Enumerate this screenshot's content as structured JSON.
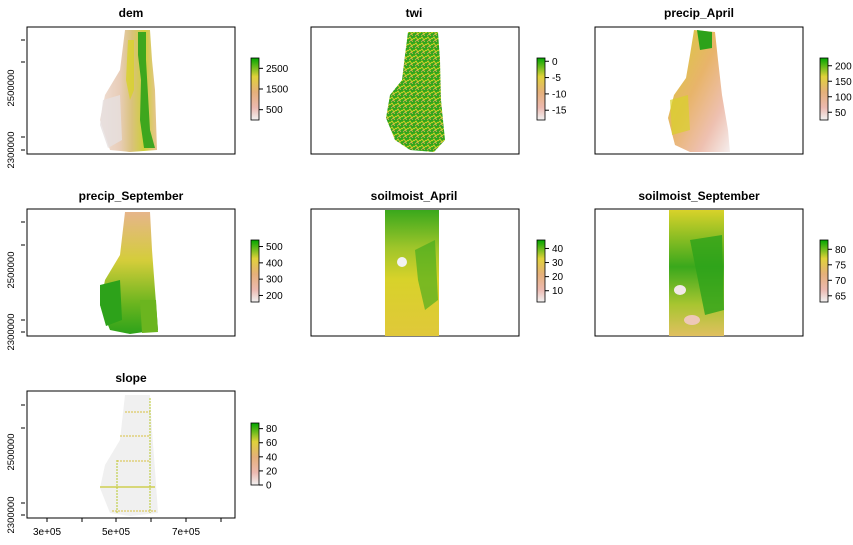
{
  "panels": [
    {
      "id": "dem",
      "title": "dem",
      "legend": {
        "ticks": [
          "2500",
          "1500",
          "500"
        ],
        "values": [
          2500,
          1500,
          500
        ],
        "range": [
          0,
          3000
        ],
        "palette": "terrain"
      }
    },
    {
      "id": "twi",
      "title": "twi",
      "legend": {
        "ticks": [
          "0",
          "-5",
          "-10",
          "-15"
        ],
        "values": [
          0,
          -5,
          -10,
          -15
        ],
        "range": [
          -18,
          1
        ],
        "palette": "terrain"
      }
    },
    {
      "id": "precip_April",
      "title": "precip_April",
      "legend": {
        "ticks": [
          "200",
          "150",
          "100",
          "50"
        ],
        "values": [
          200,
          150,
          100,
          50
        ],
        "range": [
          25,
          225
        ],
        "palette": "terrain"
      }
    },
    {
      "id": "precip_September",
      "title": "precip_September",
      "legend": {
        "ticks": [
          "500",
          "400",
          "300",
          "200"
        ],
        "values": [
          500,
          400,
          300,
          200
        ],
        "range": [
          160,
          540
        ],
        "palette": "terrain"
      }
    },
    {
      "id": "soilmoist_April",
      "title": "soilmoist_April",
      "legend": {
        "ticks": [
          "40",
          "30",
          "20",
          "10"
        ],
        "values": [
          40,
          30,
          20,
          10
        ],
        "range": [
          2,
          46
        ],
        "palette": "terrain"
      }
    },
    {
      "id": "soilmoist_September",
      "title": "soilmoist_September",
      "legend": {
        "ticks": [
          "80",
          "75",
          "70",
          "65"
        ],
        "values": [
          80,
          75,
          70,
          65
        ],
        "range": [
          63,
          83
        ],
        "palette": "terrain"
      }
    },
    {
      "id": "slope",
      "title": "slope",
      "legend": {
        "ticks": [
          "80",
          "60",
          "40",
          "20",
          "0"
        ],
        "values": [
          80,
          60,
          40,
          20,
          0
        ],
        "range": [
          0,
          88
        ],
        "palette": "terrain"
      }
    }
  ],
  "axes": {
    "y_ticks": [
      "2500000",
      "2300000"
    ],
    "x_ticks": [
      "3e+05",
      "5e+05",
      "7e+05"
    ]
  },
  "colors": {
    "low": "#f2f2f2",
    "pink": "#e8b8ae",
    "tan": "#e0a66a",
    "yellow": "#d8d22a",
    "green": "#2da21a",
    "dark_green": "#00a600"
  }
}
